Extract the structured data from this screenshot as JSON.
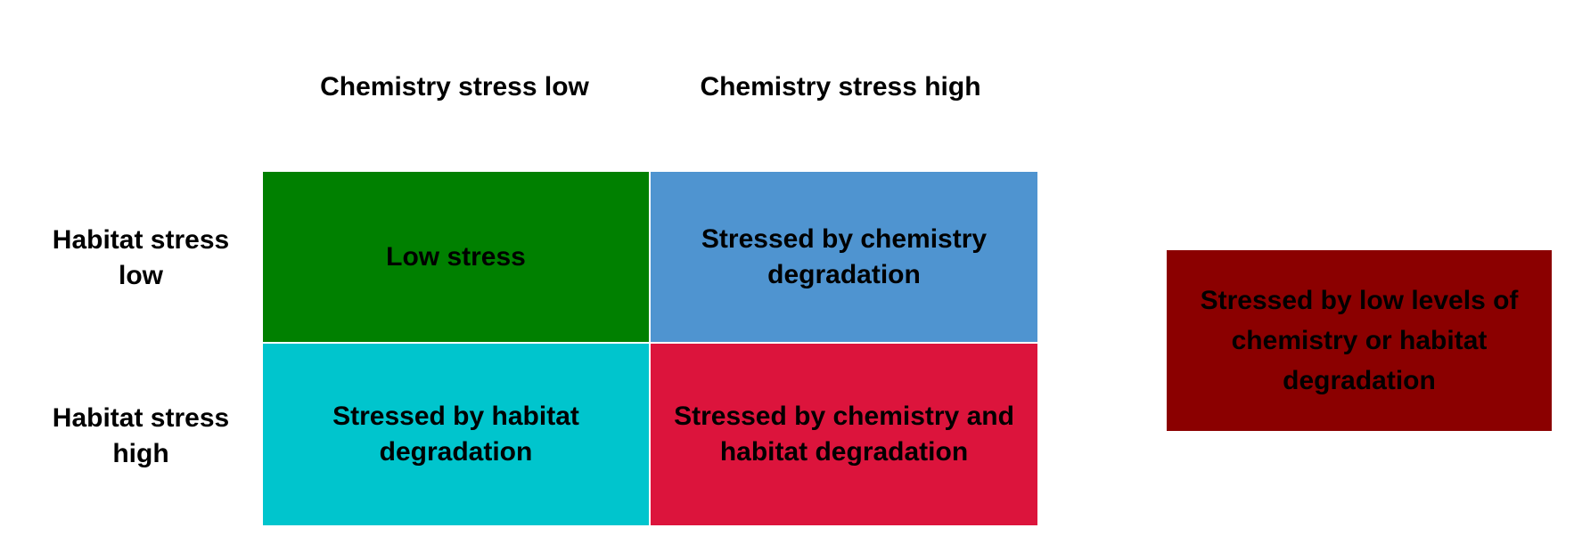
{
  "columns": {
    "low": "Chemistry stress low",
    "high": "Chemistry stress high"
  },
  "rows": {
    "low": "Habitat stress\nlow",
    "high": "Habitat stress\nhigh"
  },
  "cells": {
    "low_low": {
      "label": "Low stress",
      "color": "#008000"
    },
    "low_high": {
      "label": "Stressed by chemistry\ndegradation",
      "color": "#4f94d0"
    },
    "high_low": {
      "label": "Stressed by  habitat\ndegradation",
      "color": "#00c5cd"
    },
    "high_high": {
      "label": "Stressed by chemistry and\nhabitat degradation",
      "color": "#dc143c"
    }
  },
  "extra": {
    "label": "Stressed by low levels of\nchemistry or habitat\ndegradation",
    "color": "#8b0000"
  }
}
